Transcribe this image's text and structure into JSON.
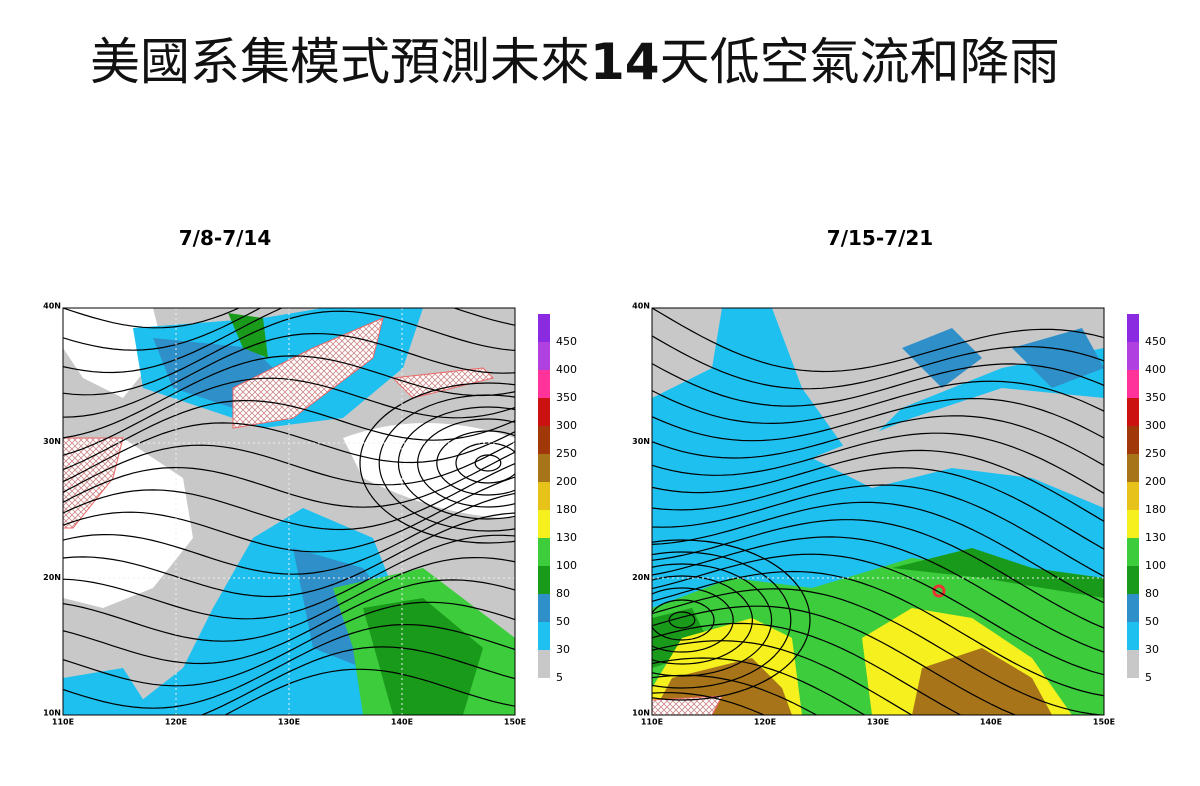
{
  "title": {
    "parts": [
      "美國系集模式預測未來",
      "14",
      "天低空氣流和降雨"
    ]
  },
  "panels": [
    {
      "period": "7/8-7/14",
      "lat_labels": [
        "40N",
        "30N",
        "20N",
        "10N"
      ],
      "lon_labels": [
        "110E",
        "120E",
        "130E",
        "140E",
        "150E"
      ],
      "colorbar_labels": [
        "450",
        "400",
        "350",
        "300",
        "250",
        "200",
        "180",
        "130",
        "100",
        "80",
        "50",
        "30",
        "5"
      ]
    },
    {
      "period": "7/15-7/21",
      "lat_labels": [
        "40N",
        "30N",
        "20N",
        "10N"
      ],
      "lon_labels": [
        "110E",
        "120E",
        "130E",
        "140E",
        "150E"
      ],
      "colorbar_labels": [
        "450",
        "400",
        "350",
        "300",
        "250",
        "200",
        "180",
        "130",
        "100",
        "80",
        "50",
        "30",
        "5"
      ]
    }
  ]
}
